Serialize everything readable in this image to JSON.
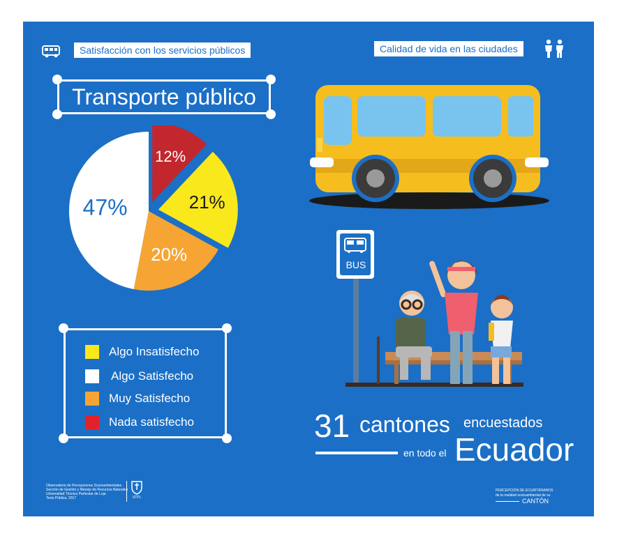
{
  "header": {
    "left_tag": "Satisfacción con los servicios públicos",
    "right_tag": "Calidad de vida en las ciudades",
    "left_icon": "bus-icon",
    "right_icon": "people-icon"
  },
  "title": "Transporte público",
  "chart_data": {
    "type": "pie",
    "title": "Transporte público",
    "slices": [
      {
        "label": "Nada satisfecho",
        "value": 12,
        "text": "12%",
        "color": "#c1272d"
      },
      {
        "label": "Algo Insatisfecho",
        "value": 21,
        "text": "21%",
        "color": "#f8e81c"
      },
      {
        "label": "Muy Satisfecho",
        "value": 20,
        "text": "20%",
        "color": "#f6a535"
      },
      {
        "label": "Algo Satisfecho",
        "value": 47,
        "text": "47%",
        "color": "#ffffff"
      }
    ]
  },
  "legend": [
    {
      "label": "Algo Insatisfecho",
      "color": "#f8e81c"
    },
    {
      "label": "Algo Satisfecho",
      "color": "#ffffff"
    },
    {
      "label": "Muy Satisfecho",
      "color": "#f6a535"
    },
    {
      "label": "Nada satisfecho",
      "color": "#e2222a"
    }
  ],
  "bus_sign": "BUS",
  "stat": {
    "number": "31",
    "word": "cantones",
    "suffix": "encuestados",
    "prefix2": "en todo el",
    "country": "Ecuador"
  },
  "footer": {
    "left_text": "Observatorio de Percepciones Socioambientales\nSección de Gestión y Manejo de Recursos Naturales\nUniversidad Técnica Particular de Loja\nTesis Pública, 2017",
    "left_logo": "UTPL",
    "right_line1": "PERCEPCIÓN DE ECUATORIANOS",
    "right_line2": "de la realidad socioambiental de su",
    "right_line3": "CANTÓN"
  },
  "colors": {
    "background": "#1b6fc6",
    "bus": "#f6bd1f",
    "red": "#c1272d",
    "yellow": "#f8e81c",
    "orange": "#f6a535"
  }
}
